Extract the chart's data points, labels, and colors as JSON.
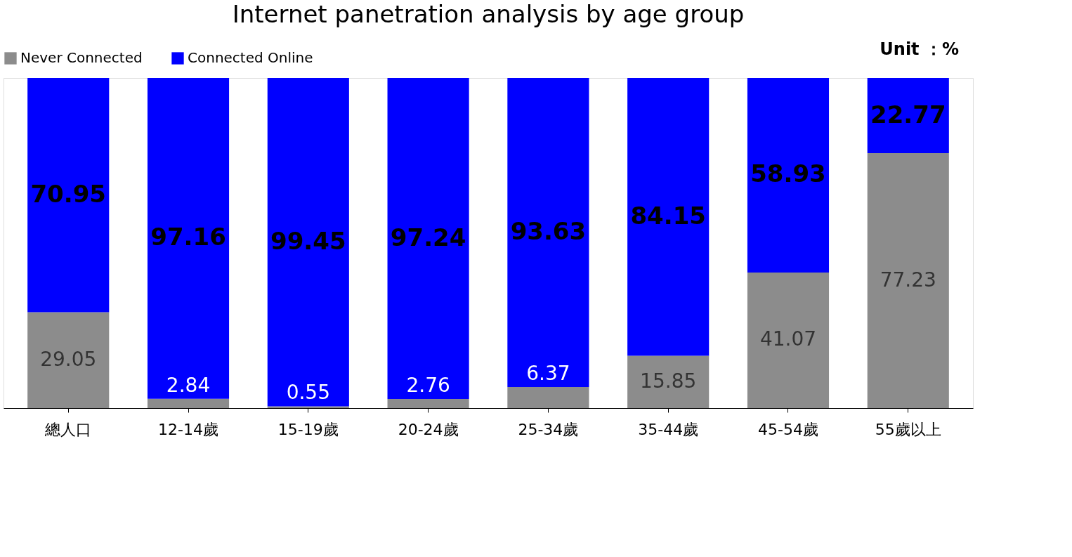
{
  "chart_data": {
    "type": "bar",
    "title": "Internet panetration analysis by age group",
    "categories": [
      "總人口",
      "12-14歲",
      "15-19歲",
      "20-24歲",
      "25-34歲",
      "35-44歲",
      "45-54歲",
      "55歲以上"
    ],
    "stacked": true,
    "data_labels": true,
    "legend": "top",
    "grid": false,
    "series": [
      {
        "name": "Never Connected",
        "color": "#8c8c8c",
        "values": [
          29.05,
          2.84,
          0.55,
          2.76,
          6.37,
          15.85,
          41.07,
          77.23
        ]
      },
      {
        "name": "Connected Online",
        "color": "#0000ff",
        "values": [
          70.95,
          97.16,
          99.45,
          97.24,
          93.63,
          84.15,
          58.93,
          22.77
        ]
      }
    ],
    "annotations": [
      "Unit ：%"
    ]
  }
}
